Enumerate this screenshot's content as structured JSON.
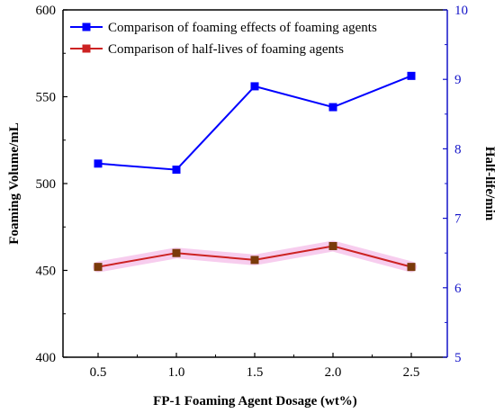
{
  "chart_data": {
    "type": "line",
    "x_categories": [
      "0.5",
      "1.0",
      "1.5",
      "2.0",
      "2.5"
    ],
    "x": [
      0.5,
      1.0,
      1.5,
      2.0,
      2.5
    ],
    "xlabel": "FP-1 Foaming Agent Dosage (wt%)",
    "ylabel_left": "Foaming Volume/mL",
    "ylabel_right": "Half-life/min",
    "ylim_left": [
      400,
      600
    ],
    "ylim_right": [
      5,
      10
    ],
    "yticks_left": [
      "400",
      "450",
      "500",
      "550",
      "600"
    ],
    "yticks_right": [
      "5",
      "6",
      "7",
      "8",
      "9",
      "10"
    ],
    "series": [
      {
        "name": "Comparison of foaming effects of foaming agents",
        "axis": "left",
        "color": "#0000ff",
        "values": [
          511.5,
          508,
          556,
          544,
          562
        ]
      },
      {
        "name": "Comparison of half-lives of foaming agents",
        "axis": "right",
        "color": "#cc2222",
        "marker_color": "#7a3a0a",
        "band_color": "#f6c8ec",
        "values": [
          6.3,
          6.5,
          6.4,
          6.6,
          6.3
        ]
      }
    ],
    "legend_position": "top-left",
    "grid": false
  }
}
